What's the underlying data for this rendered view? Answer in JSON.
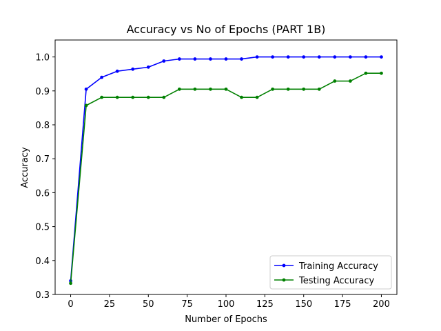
{
  "chart_data": {
    "type": "line",
    "title": "Accuracy vs No of Epochs (PART 1B)",
    "xlabel": "Number of Epochs",
    "ylabel": "Accuracy",
    "xlim": [
      -10,
      210
    ],
    "ylim": [
      0.3,
      1.05
    ],
    "xticks": [
      0,
      25,
      50,
      75,
      100,
      125,
      150,
      175,
      200
    ],
    "xtick_labels": [
      "0",
      "25",
      "50",
      "75",
      "100",
      "125",
      "150",
      "175",
      "200"
    ],
    "yticks": [
      0.3,
      0.4,
      0.5,
      0.6,
      0.7,
      0.8,
      0.9,
      1.0
    ],
    "ytick_labels": [
      "0.3",
      "0.4",
      "0.5",
      "0.6",
      "0.7",
      "0.8",
      "0.9",
      "1.0"
    ],
    "grid": false,
    "legend_position": "lower-right",
    "x": [
      0,
      10,
      20,
      30,
      40,
      50,
      60,
      70,
      80,
      90,
      100,
      110,
      120,
      130,
      140,
      150,
      160,
      170,
      180,
      190,
      200
    ],
    "series": [
      {
        "name": "Training Accuracy",
        "color": "#0000ff",
        "values": [
          0.34,
          0.905,
          0.94,
          0.958,
          0.964,
          0.97,
          0.988,
          0.994,
          0.994,
          0.994,
          0.994,
          0.994,
          1.0,
          1.0,
          1.0,
          1.0,
          1.0,
          1.0,
          1.0,
          1.0,
          1.0
        ]
      },
      {
        "name": "Testing Accuracy",
        "color": "#008000",
        "values": [
          0.333,
          0.857,
          0.881,
          0.881,
          0.881,
          0.881,
          0.881,
          0.905,
          0.905,
          0.905,
          0.905,
          0.881,
          0.881,
          0.905,
          0.905,
          0.905,
          0.905,
          0.929,
          0.929,
          0.952,
          0.952
        ]
      }
    ]
  }
}
